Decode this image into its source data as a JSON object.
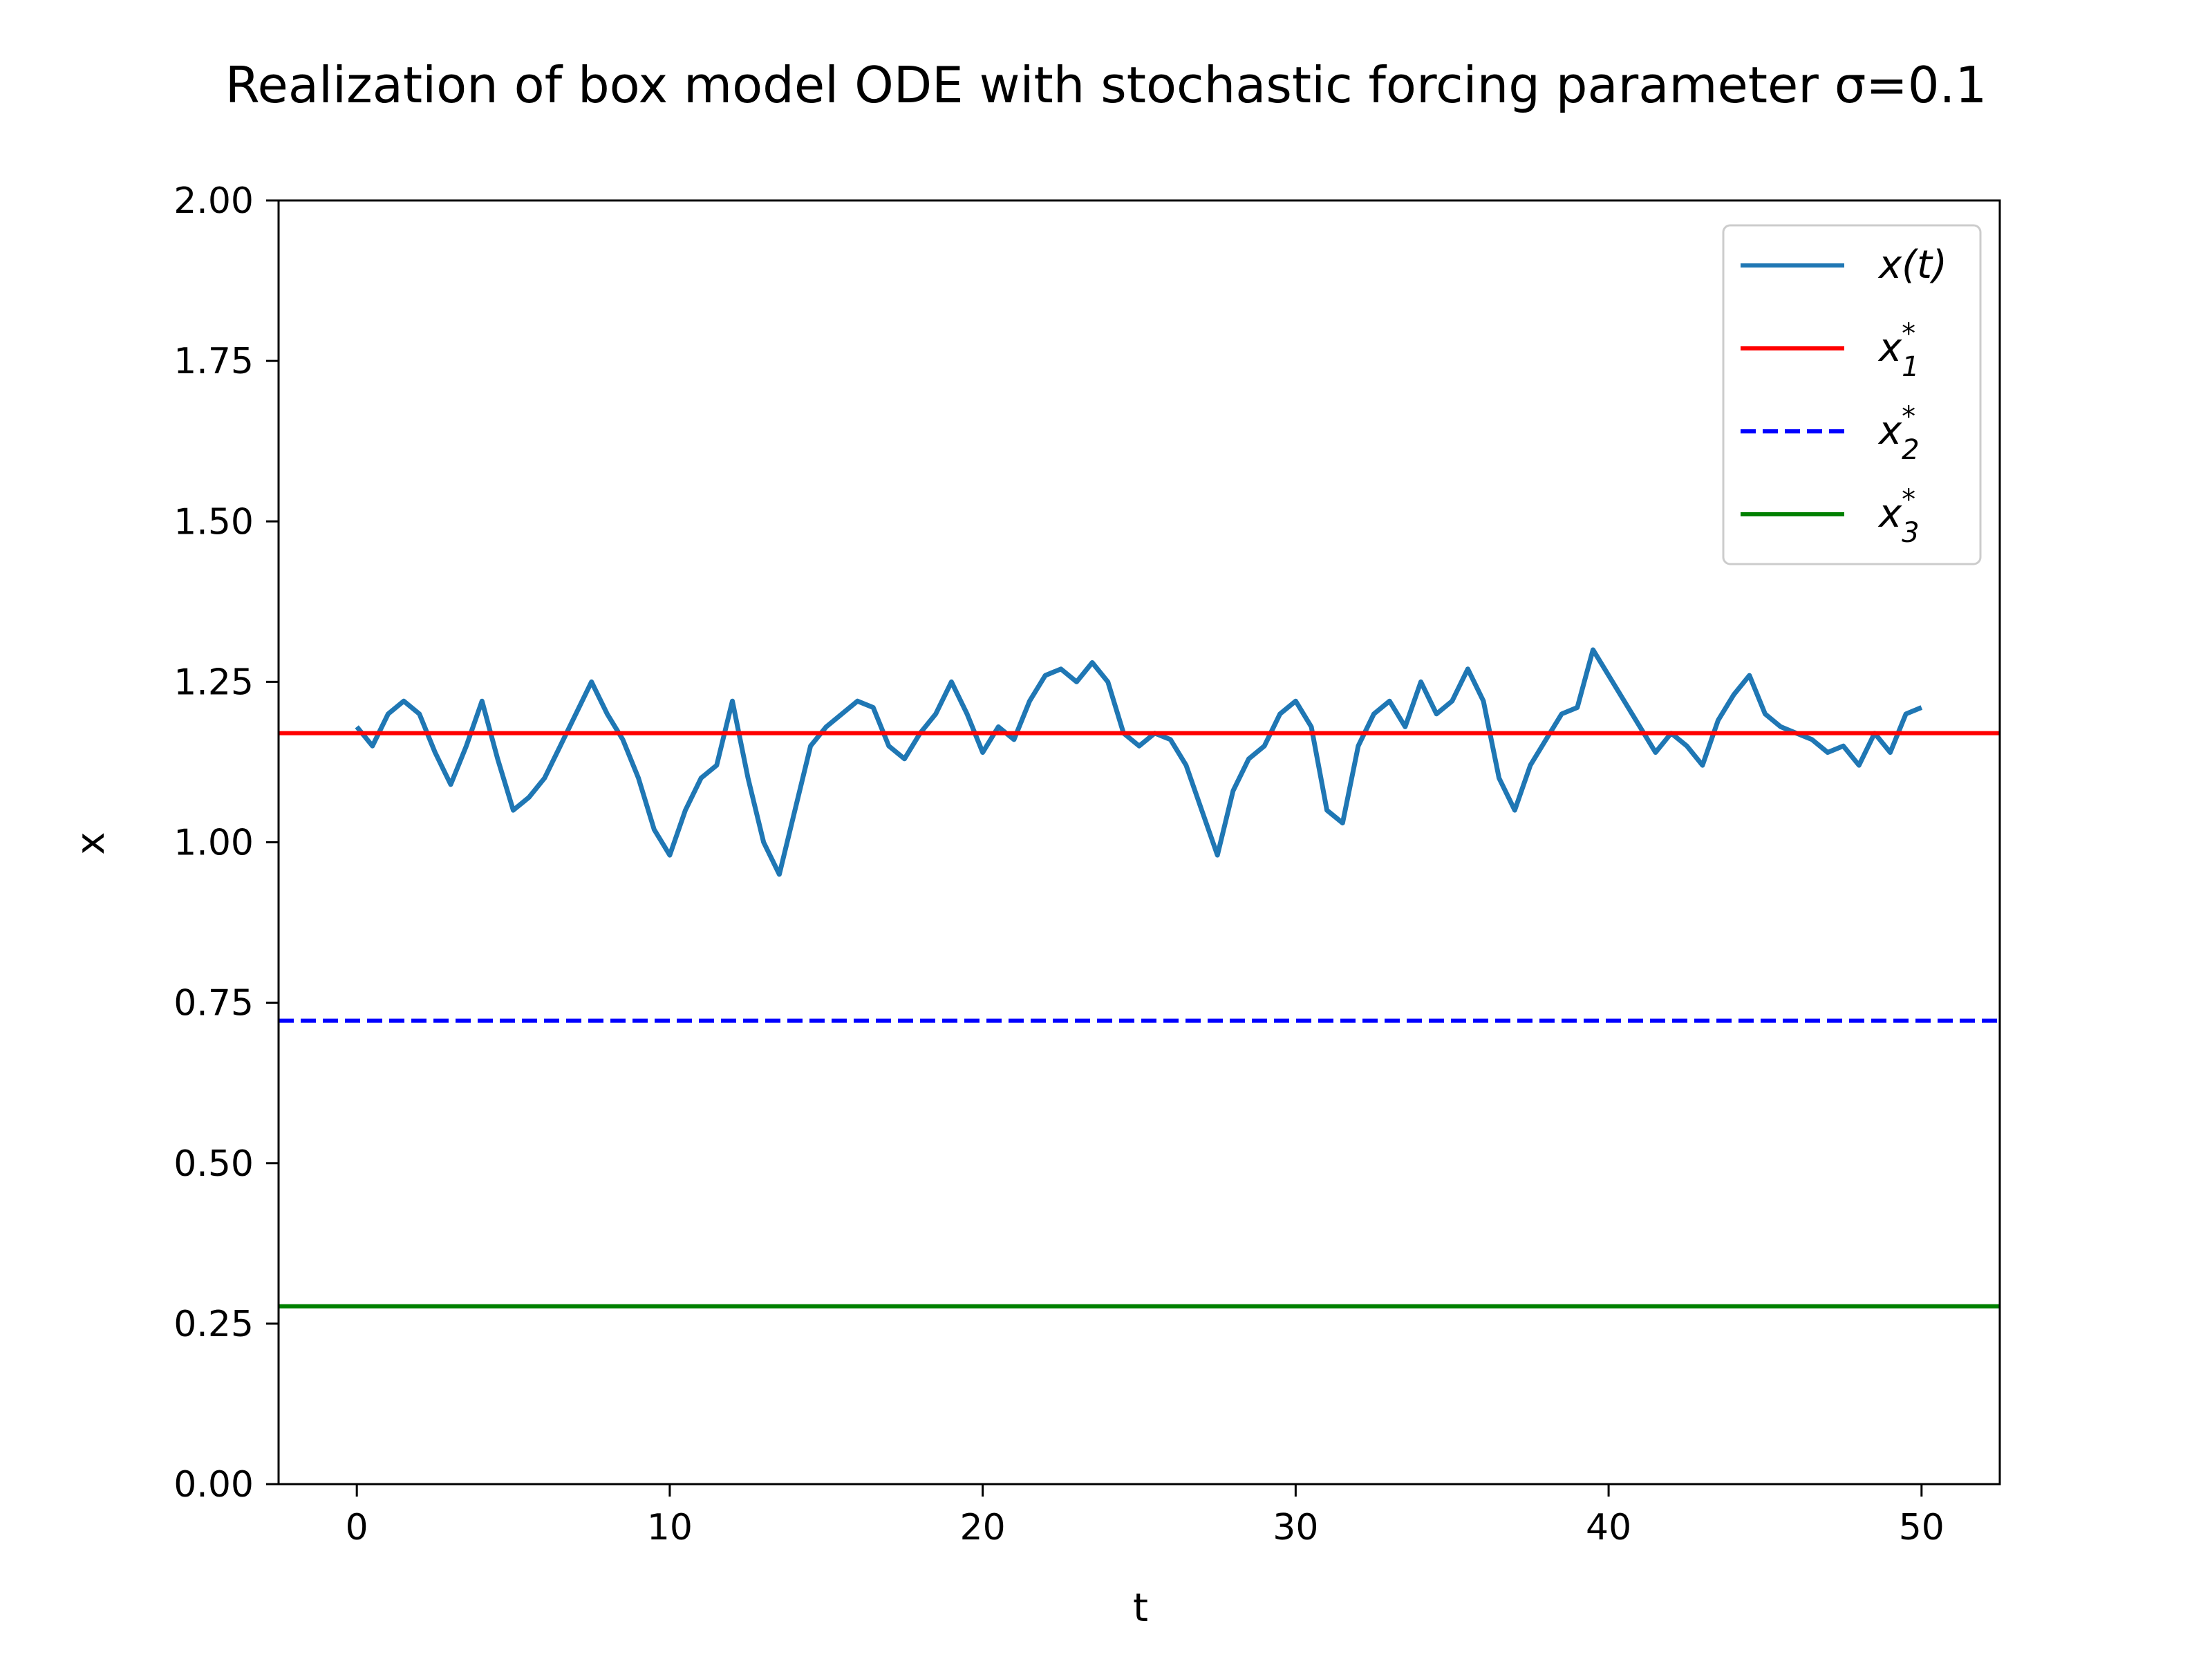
{
  "chart_data": {
    "type": "line",
    "title": "Realization of box model ODE with stochastic forcing parameter σ=0.1",
    "xlabel": "t",
    "ylabel": "x",
    "xlim": [
      -2.5,
      52.5
    ],
    "ylim": [
      0,
      2
    ],
    "xticks": [
      "0",
      "10",
      "20",
      "30",
      "40",
      "50"
    ],
    "yticks": [
      "0.00",
      "0.25",
      "0.50",
      "0.75",
      "1.00",
      "1.25",
      "1.50",
      "1.75",
      "2.00"
    ],
    "grid": false,
    "legend_position": "top-right",
    "series": [
      {
        "name": "x(t)",
        "color": "#1f77b4",
        "style": "solid",
        "x": [
          0,
          0.5,
          1,
          1.5,
          2,
          2.5,
          3,
          3.5,
          4,
          4.5,
          5,
          5.5,
          6,
          6.5,
          7,
          7.5,
          8,
          8.5,
          9,
          9.5,
          10,
          10.5,
          11,
          11.5,
          12,
          12.5,
          13,
          13.5,
          14,
          14.5,
          15,
          15.5,
          16,
          16.5,
          17,
          17.5,
          18,
          18.5,
          19,
          19.5,
          20,
          20.5,
          21,
          21.5,
          22,
          22.5,
          23,
          23.5,
          24,
          24.5,
          25,
          25.5,
          26,
          26.5,
          27,
          27.5,
          28,
          28.5,
          29,
          29.5,
          30,
          30.5,
          31,
          31.5,
          32,
          32.5,
          33,
          33.5,
          34,
          34.5,
          35,
          35.5,
          36,
          36.5,
          37,
          37.5,
          38,
          38.5,
          39,
          39.5,
          40,
          40.5,
          41,
          41.5,
          42,
          42.5,
          43,
          43.5,
          44,
          44.5,
          45,
          45.5,
          46,
          46.5,
          47,
          47.5,
          48,
          48.5,
          49,
          49.5,
          50
        ],
        "y": [
          1.18,
          1.15,
          1.2,
          1.22,
          1.2,
          1.14,
          1.09,
          1.15,
          1.22,
          1.13,
          1.05,
          1.07,
          1.1,
          1.15,
          1.2,
          1.25,
          1.2,
          1.16,
          1.1,
          1.02,
          0.98,
          1.05,
          1.1,
          1.12,
          1.22,
          1.1,
          1.0,
          0.95,
          1.05,
          1.15,
          1.18,
          1.2,
          1.22,
          1.21,
          1.15,
          1.13,
          1.17,
          1.2,
          1.25,
          1.2,
          1.14,
          1.18,
          1.16,
          1.22,
          1.26,
          1.27,
          1.25,
          1.28,
          1.25,
          1.17,
          1.15,
          1.17,
          1.16,
          1.12,
          1.05,
          0.98,
          1.08,
          1.13,
          1.15,
          1.2,
          1.22,
          1.18,
          1.05,
          1.03,
          1.15,
          1.2,
          1.22,
          1.18,
          1.25,
          1.2,
          1.22,
          1.27,
          1.22,
          1.1,
          1.05,
          1.12,
          1.16,
          1.2,
          1.21,
          1.3,
          1.26,
          1.22,
          1.18,
          1.14,
          1.17,
          1.15,
          1.12,
          1.19,
          1.23,
          1.26,
          1.2,
          1.18,
          1.17,
          1.16,
          1.14,
          1.15,
          1.12,
          1.17,
          1.14,
          1.2,
          1.21
        ]
      },
      {
        "name": "x*1",
        "color": "#ff0000",
        "style": "solid",
        "value": 1.17
      },
      {
        "name": "x*2",
        "color": "#0000ff",
        "style": "dashed",
        "value": 0.722
      },
      {
        "name": "x*3",
        "color": "#008000",
        "style": "solid",
        "value": 0.277
      }
    ],
    "legend": [
      {
        "base": "x(t)",
        "sup": "",
        "sub": ""
      },
      {
        "base": "x",
        "sup": "*",
        "sub": "1"
      },
      {
        "base": "x",
        "sup": "*",
        "sub": "2"
      },
      {
        "base": "x",
        "sup": "*",
        "sub": "3"
      }
    ]
  }
}
